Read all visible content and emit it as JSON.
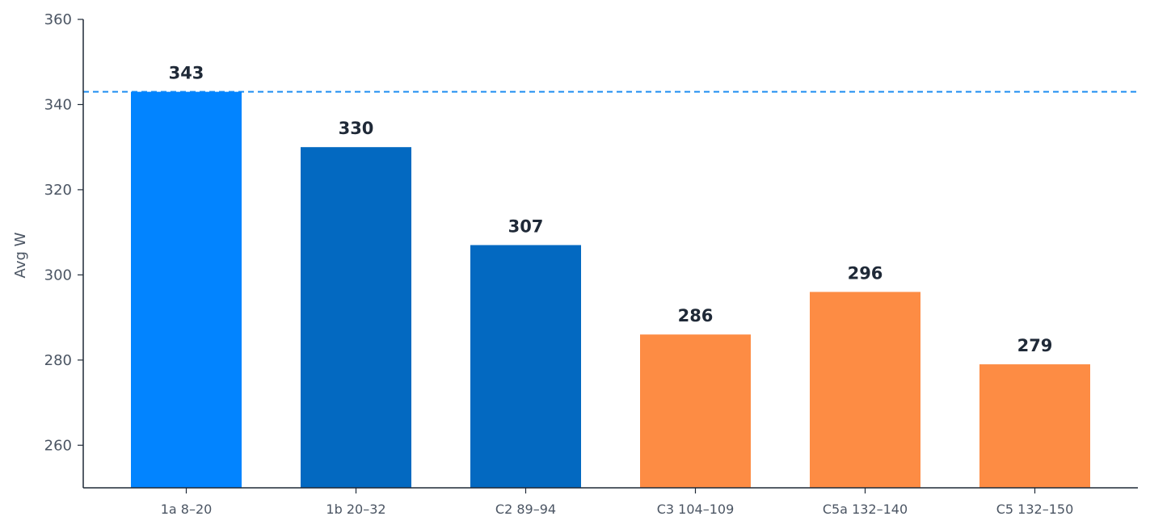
{
  "chart_data": {
    "type": "bar",
    "categories": [
      "1a 8–20",
      "1b 20–32",
      "C2 89–94",
      "C3 104–109",
      "C5a 132–140",
      "C5 132–150"
    ],
    "values": [
      343,
      330,
      307,
      286,
      296,
      279
    ],
    "data_labels": [
      "343",
      "330",
      "307",
      "286",
      "296",
      "279"
    ],
    "bar_colors": [
      "#0284ff",
      "#0369c1",
      "#0369c1",
      "#fd8c44",
      "#fd8c44",
      "#fd8c44"
    ],
    "xlabel": "",
    "ylabel": "Avg W",
    "ylim": [
      250,
      360
    ],
    "yticks": [
      260,
      280,
      300,
      320,
      340,
      360
    ],
    "ytick_labels": [
      "260",
      "280",
      "300",
      "320",
      "340",
      "360"
    ],
    "reference_line": {
      "value": 343,
      "style": "dashed",
      "color": "#1f8ef1"
    },
    "grid": false,
    "legend": null
  }
}
